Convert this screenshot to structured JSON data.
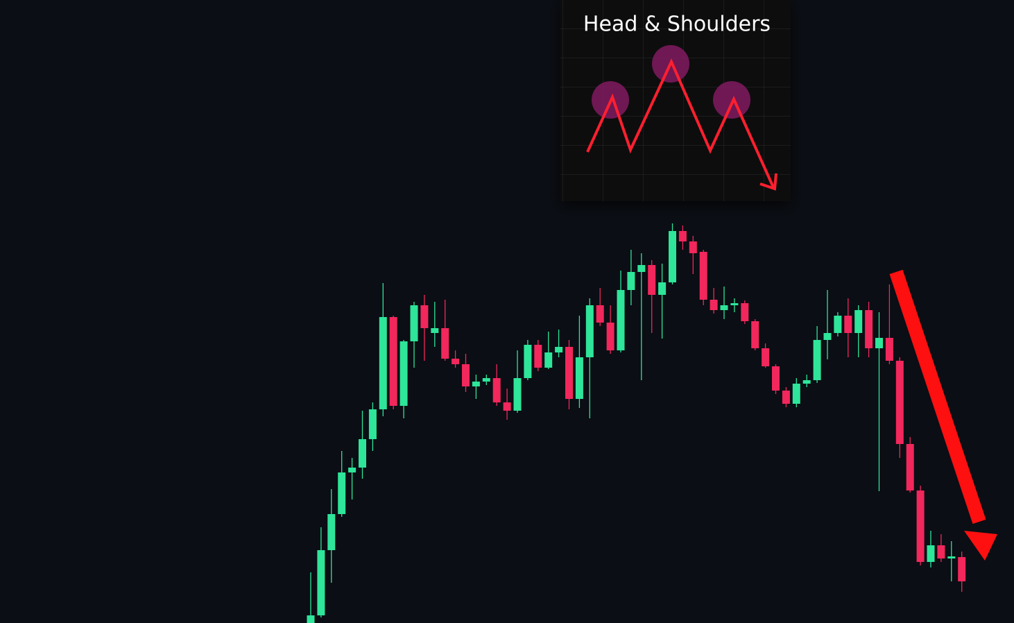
{
  "chart_data": {
    "type": "candlestick",
    "title": "Head & Shoulders",
    "up_color": "#2ee59a",
    "down_color": "#f2275c",
    "ylim": [
      0,
      898
    ],
    "open": [
      0,
      11,
      105,
      157,
      217,
      224,
      265,
      308,
      441,
      313,
      406,
      458,
      418,
      425,
      381,
      373,
      341,
      348,
      353,
      318,
      306,
      353,
      401,
      368,
      390,
      398,
      323,
      383,
      458,
      433,
      393,
      480,
      506,
      516,
      473,
      491,
      565,
      550,
      535,
      466,
      451,
      458,
      461,
      435,
      396,
      370,
      335,
      316,
      345,
      350,
      408,
      418,
      443,
      418,
      451,
      396,
      411,
      378,
      258,
      191,
      88,
      112,
      93,
      95
    ],
    "high": [
      73,
      138,
      193,
      248,
      238,
      306,
      318,
      490,
      443,
      408,
      463,
      473,
      463,
      466,
      393,
      388,
      358,
      358,
      373,
      338,
      393,
      408,
      408,
      420,
      423,
      408,
      443,
      468,
      483,
      458,
      508,
      538,
      533,
      523,
      518,
      576,
      573,
      558,
      538,
      483,
      485,
      468,
      465,
      438,
      403,
      373,
      340,
      353,
      358,
      428,
      480,
      448,
      468,
      458,
      463,
      448,
      488,
      383,
      268,
      198,
      133,
      128,
      118,
      103
    ],
    "low": [
      0,
      8,
      58,
      153,
      178,
      208,
      248,
      298,
      308,
      295,
      368,
      378,
      398,
      378,
      368,
      333,
      323,
      343,
      313,
      293,
      303,
      350,
      363,
      366,
      383,
      308,
      310,
      295,
      428,
      388,
      390,
      458,
      350,
      418,
      410,
      488,
      538,
      503,
      458,
      446,
      438,
      448,
      431,
      393,
      368,
      330,
      311,
      311,
      340,
      346,
      380,
      413,
      383,
      383,
      383,
      190,
      373,
      238,
      188,
      83,
      80,
      88,
      60,
      45
    ],
    "close": [
      11,
      105,
      157,
      217,
      224,
      265,
      308,
      441,
      313,
      406,
      458,
      425,
      425,
      381,
      373,
      341,
      348,
      353,
      318,
      306,
      353,
      401,
      368,
      390,
      398,
      323,
      383,
      458,
      433,
      393,
      480,
      506,
      516,
      473,
      491,
      565,
      550,
      533,
      466,
      451,
      458,
      461,
      435,
      396,
      370,
      335,
      316,
      345,
      350,
      408,
      418,
      443,
      418,
      451,
      396,
      411,
      378,
      258,
      191,
      88,
      112,
      93,
      96,
      60
    ]
  }
}
